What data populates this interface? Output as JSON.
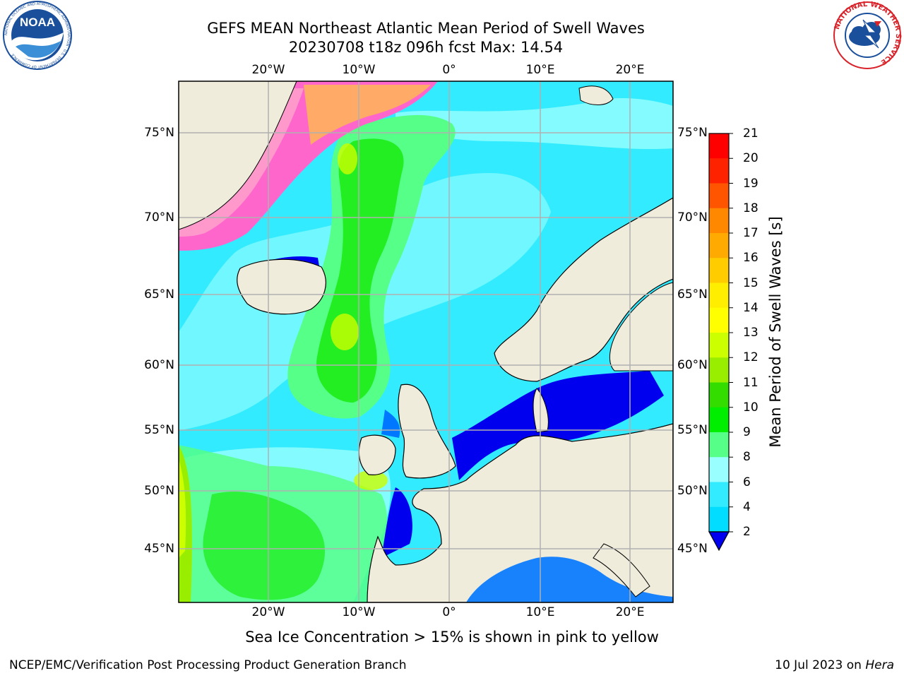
{
  "header": {
    "title_line1": "GEFS MEAN Northeast Atlantic Mean Period of Swell Waves",
    "title_line2": "20230708 t18z 096h fcst   Max: 14.54"
  },
  "logos": {
    "left": {
      "text": "NOAA",
      "ring_text": "NATIONAL OCEANIC AND ATMOSPHERIC ADMINISTRATION · U.S. DEPARTMENT OF COMMERCE",
      "color": "#1a4f9c"
    },
    "right": {
      "ring_text": "NATIONAL WEATHER SERVICE",
      "color": "#d8232a"
    }
  },
  "map": {
    "lon_ticks": [
      "20°W",
      "10°W",
      "0°",
      "10°E",
      "20°E"
    ],
    "lat_ticks": [
      "75°N",
      "70°N",
      "65°N",
      "60°N",
      "55°N",
      "50°N",
      "45°N"
    ],
    "land_color": "#efecdc",
    "grid_color": "#b0b0b0"
  },
  "colorbar": {
    "label": "Mean Period of Swell Waves [s]",
    "ticks": [
      "21",
      "20",
      "19",
      "18",
      "17",
      "16",
      "15",
      "14",
      "13",
      "12",
      "11",
      "10",
      "9",
      "8",
      "6",
      "4",
      "2"
    ],
    "colors": [
      "#0000ee",
      "#0077ff",
      "#00ddff",
      "#33ebff",
      "#99ffff",
      "#55ff88",
      "#00ee00",
      "#33dd00",
      "#99ee00",
      "#ccff00",
      "#ffff00",
      "#ffee00",
      "#ffcc00",
      "#ffaa00",
      "#ff8800",
      "#ff5500",
      "#ff2200",
      "#ff0000"
    ]
  },
  "ice_note": "Sea Ice Concentration > 15% is shown in pink to yellow",
  "footer": {
    "left": "NCEP/EMC/Verification Post Processing Product Generation Branch",
    "date": "10 Jul 2023 on ",
    "machine": "Hera"
  }
}
